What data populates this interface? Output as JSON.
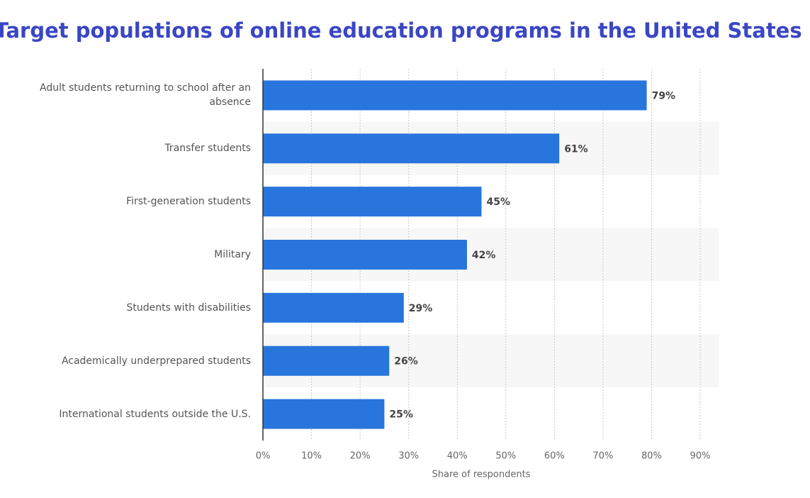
{
  "chart_data": {
    "type": "bar",
    "orientation": "horizontal",
    "title": "Target populations of online education programs in the United States",
    "x_label": "Share of respondents",
    "categories": [
      "Adult students returning to school after an absence",
      "Transfer students",
      "First-generation students",
      "Military",
      "Students with disabilities",
      "Academically underprepared students",
      "International students outside the U.S."
    ],
    "values": [
      79,
      61,
      45,
      42,
      29,
      26,
      25
    ],
    "value_labels": [
      "79%",
      "61%",
      "45%",
      "42%",
      "29%",
      "26%",
      "25%"
    ],
    "color": "#2876dd",
    "xlim": [
      0,
      90
    ],
    "xticks": [
      {
        "value": 0,
        "label": "0%"
      },
      {
        "value": 10,
        "label": "10%"
      },
      {
        "value": 20,
        "label": "20%"
      },
      {
        "value": 30,
        "label": "30%"
      },
      {
        "value": 40,
        "label": "40%"
      },
      {
        "value": 50,
        "label": "50%"
      },
      {
        "value": 60,
        "label": "60%"
      },
      {
        "value": 70,
        "label": "70%"
      },
      {
        "value": 80,
        "label": "80%"
      },
      {
        "value": 90,
        "label": "90%"
      }
    ],
    "grid": true
  }
}
